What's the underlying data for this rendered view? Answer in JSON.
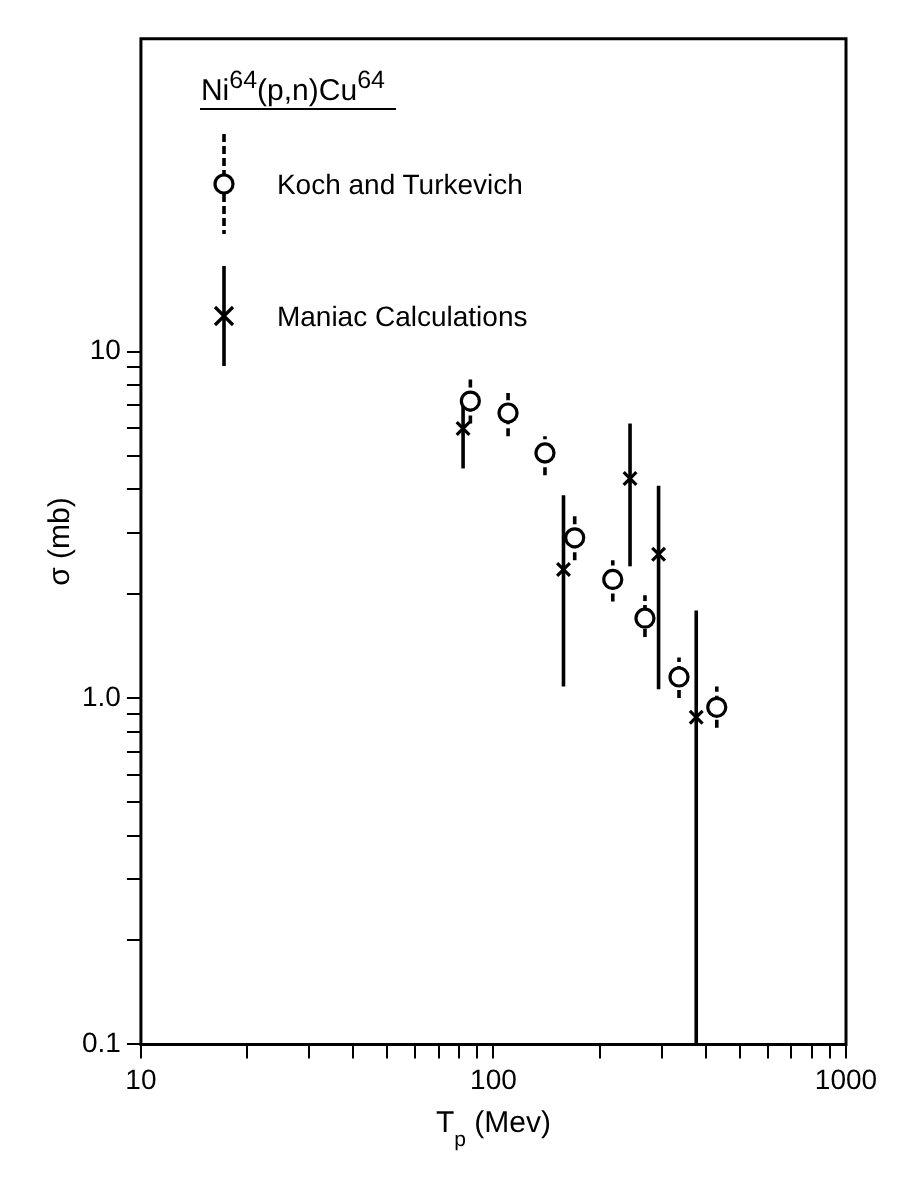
{
  "chart_data": {
    "type": "scatter",
    "xlabel": "T$_{p}$ (Mev)",
    "ylabel": "σ (mb)",
    "legend_title": "Ni$^{64}$(p,n)Cu$^{64}$",
    "legend": "top left",
    "log": "xy",
    "xlim": [
      10,
      1000
    ],
    "ylim": [
      0.1,
      80
    ],
    "xticks": [
      10,
      {
        "value": 20,
        "label": null
      },
      {
        "value": 30,
        "label": null
      },
      {
        "value": 40,
        "label": null
      },
      {
        "value": 50,
        "label": null
      },
      {
        "value": 60,
        "label": null
      },
      {
        "value": 70,
        "label": null
      },
      {
        "value": 80,
        "label": null
      },
      {
        "value": 90,
        "label": null
      },
      100,
      {
        "value": 200,
        "label": null
      },
      {
        "value": 300,
        "label": null
      },
      {
        "value": 400,
        "label": null
      },
      {
        "value": 500,
        "label": null
      },
      {
        "value": 600,
        "label": null
      },
      {
        "value": 700,
        "label": null
      },
      {
        "value": 800,
        "label": null
      },
      {
        "value": 900,
        "label": null
      },
      1000
    ],
    "yticks": [
      0.1,
      {
        "value": 0.2,
        "label": null
      },
      {
        "value": 0.3,
        "label": null
      },
      {
        "value": 0.4,
        "label": null
      },
      {
        "value": 0.5,
        "label": null
      },
      {
        "value": 0.6,
        "label": null
      },
      {
        "value": 0.7,
        "label": null
      },
      {
        "value": 0.8,
        "label": null
      },
      {
        "value": 0.9,
        "label": null
      },
      {
        "value": 1,
        "label": "1.0"
      },
      {
        "value": 2,
        "label": null
      },
      {
        "value": 3,
        "label": null
      },
      {
        "value": 4,
        "label": null
      },
      {
        "value": 5,
        "label": null
      },
      {
        "value": 6,
        "label": null
      },
      {
        "value": 7,
        "label": null
      },
      {
        "value": 8,
        "label": null
      },
      {
        "value": 9,
        "label": null
      },
      10
    ],
    "grid": false,
    "series": [
      {
        "name": "Koch and Turkevich",
        "color": "#000000",
        "marker": "circle",
        "line_style": "dashed",
        "x": [
          86,
          110,
          140,
          170,
          218,
          269,
          336,
          430
        ],
        "values": [
          7.2,
          6.65,
          5.1,
          2.9,
          2.2,
          1.7,
          1.15,
          0.94
        ],
        "errors": [
          [
            6.2,
            8.4
          ],
          [
            5.7,
            7.6
          ],
          [
            4.4,
            5.7
          ],
          [
            2.5,
            3.4
          ],
          [
            1.9,
            2.5
          ],
          [
            1.5,
            1.98
          ],
          [
            1.0,
            1.31
          ],
          [
            0.82,
            1.08
          ]
        ]
      },
      {
        "name": "Maniac Calculations",
        "color": "#000000",
        "marker": "cross",
        "line_style": "solid",
        "x": [
          82,
          158,
          244,
          294,
          376
        ],
        "values": [
          6.0,
          2.35,
          4.3,
          2.6,
          0.88
        ],
        "errors": [
          [
            4.6,
            7.1
          ],
          [
            1.08,
            3.85
          ],
          [
            2.4,
            6.2
          ],
          [
            1.06,
            4.1
          ],
          [
            0.1,
            1.79
          ]
        ]
      }
    ]
  }
}
